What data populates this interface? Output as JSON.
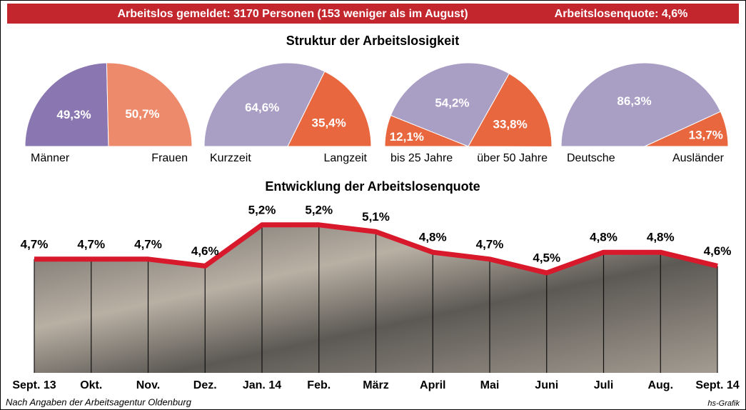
{
  "header_left": "Arbeitslos gemeldet: 3170 Personen (153 weniger als im August)",
  "header_right": "Arbeitslosenquote: 4,6%",
  "structure_title": "Struktur der Arbeitslosigkeit",
  "source": "Nach Angaben der Arbeitsagentur Oldenburg",
  "credit": "hs-Grafik",
  "chart_data": [
    {
      "type": "pie",
      "categories": [
        "Männer",
        "Frauen"
      ],
      "values": [
        49.3,
        50.7
      ],
      "value_labels": [
        "49,3%",
        "50,7%"
      ],
      "colors": [
        "#8a76b0",
        "#ee8a6c"
      ]
    },
    {
      "type": "pie",
      "categories": [
        "Kurzzeit",
        "Langzeit"
      ],
      "values": [
        64.6,
        35.4
      ],
      "value_labels": [
        "64,6%",
        "35,4%"
      ],
      "colors": [
        "#a99ec4",
        "#e8673f"
      ]
    },
    {
      "type": "pie",
      "categories": [
        "bis 25 Jahre",
        null,
        "über 50 Jahre"
      ],
      "values": [
        12.1,
        54.2,
        33.8
      ],
      "value_labels": [
        "12,1%",
        "54,2%",
        "33,8%"
      ],
      "colors": [
        "#e8673f",
        "#a99ec4",
        "#e8673f"
      ]
    },
    {
      "type": "pie",
      "categories": [
        "Deutsche",
        "Ausländer"
      ],
      "values": [
        86.3,
        13.7
      ],
      "value_labels": [
        "86,3%",
        "13,7%"
      ],
      "colors": [
        "#a99ec4",
        "#e8673f"
      ]
    },
    {
      "type": "line",
      "title": "Entwicklung der Arbeitslosenquote",
      "categories": [
        "Sept. 13",
        "Okt.",
        "Nov.",
        "Dez.",
        "Jan. 14",
        "Feb.",
        "März",
        "April",
        "Mai",
        "Juni",
        "Juli",
        "Aug.",
        "Sept. 14"
      ],
      "values": [
        4.7,
        4.7,
        4.7,
        4.6,
        5.2,
        5.2,
        5.1,
        4.8,
        4.7,
        4.5,
        4.8,
        4.8,
        4.6
      ],
      "value_labels": [
        "4,7%",
        "4,7%",
        "4,7%",
        "4,6%",
        "5,2%",
        "5,2%",
        "5,1%",
        "4,8%",
        "4,7%",
        "4,5%",
        "4,8%",
        "4,8%",
        "4,6%"
      ],
      "color": "#d8192b",
      "ylim": [
        3,
        5.5
      ]
    }
  ]
}
